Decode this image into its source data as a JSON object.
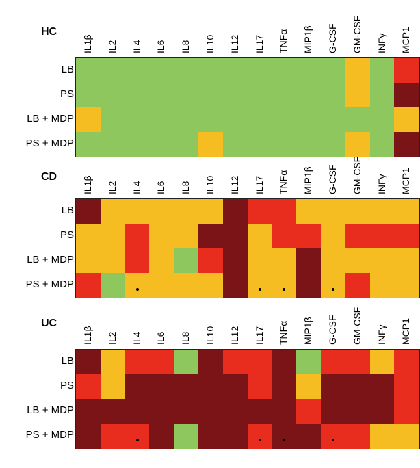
{
  "colors": {
    "green": "#8fc75f",
    "yellow": "#f5bd22",
    "red": "#e82c1e",
    "darkred": "#7b1416"
  },
  "chart_data": [
    {
      "type": "heatmap",
      "title": "HC",
      "columns": [
        "IL1β",
        "IL2",
        "IL4",
        "IL6",
        "IL8",
        "IL10",
        "IL12",
        "IL17",
        "TNFα",
        "MIP1β",
        "G-CSF",
        "GM-CSF",
        "INFγ",
        "MCP1"
      ],
      "rows": [
        "LB",
        "PS",
        "LB + MDP",
        "PS + MDP"
      ],
      "values": [
        [
          "green",
          "green",
          "green",
          "green",
          "green",
          "green",
          "green",
          "green",
          "green",
          "green",
          "green",
          "yellow",
          "green",
          "red"
        ],
        [
          "green",
          "green",
          "green",
          "green",
          "green",
          "green",
          "green",
          "green",
          "green",
          "green",
          "green",
          "yellow",
          "green",
          "darkred"
        ],
        [
          "yellow",
          "green",
          "green",
          "green",
          "green",
          "green",
          "green",
          "green",
          "green",
          "green",
          "green",
          "green",
          "green",
          "yellow"
        ],
        [
          "green",
          "green",
          "green",
          "green",
          "green",
          "yellow",
          "green",
          "green",
          "green",
          "green",
          "green",
          "yellow",
          "green",
          "darkred"
        ]
      ],
      "significant": []
    },
    {
      "type": "heatmap",
      "title": "CD",
      "columns": [
        "IL1β",
        "IL2",
        "IL4",
        "IL6",
        "IL8",
        "IL10",
        "IL12",
        "IL17",
        "TNFα",
        "MIP1β",
        "G-CSF",
        "GM-CSF",
        "INFγ",
        "MCP1"
      ],
      "rows": [
        "LB",
        "PS",
        "LB + MDP",
        "PS + MDP"
      ],
      "values": [
        [
          "darkred",
          "yellow",
          "yellow",
          "yellow",
          "yellow",
          "yellow",
          "darkred",
          "red",
          "red",
          "yellow",
          "yellow",
          "yellow",
          "yellow",
          "yellow"
        ],
        [
          "yellow",
          "yellow",
          "red",
          "yellow",
          "yellow",
          "darkred",
          "darkred",
          "yellow",
          "red",
          "red",
          "yellow",
          "red",
          "red",
          "red"
        ],
        [
          "yellow",
          "yellow",
          "red",
          "yellow",
          "green",
          "red",
          "darkred",
          "yellow",
          "yellow",
          "darkred",
          "yellow",
          "yellow",
          "yellow",
          "yellow"
        ],
        [
          "red",
          "green",
          "yellow",
          "yellow",
          "yellow",
          "yellow",
          "darkred",
          "yellow",
          "yellow",
          "darkred",
          "yellow",
          "red",
          "yellow",
          "yellow"
        ]
      ],
      "significant": [
        [
          3,
          2
        ],
        [
          3,
          7
        ],
        [
          3,
          8
        ],
        [
          3,
          10
        ]
      ]
    },
    {
      "type": "heatmap",
      "title": "UC",
      "columns": [
        "IL1β",
        "IL2",
        "IL4",
        "IL6",
        "IL8",
        "IL10",
        "IL12",
        "IL17",
        "TNFα",
        "MIP1β",
        "G-CSF",
        "GM-CSF",
        "INFγ",
        "MCP1"
      ],
      "rows": [
        "LB",
        "PS",
        "LB + MDP",
        "PS + MDP"
      ],
      "values": [
        [
          "darkred",
          "yellow",
          "red",
          "red",
          "green",
          "darkred",
          "red",
          "red",
          "darkred",
          "green",
          "red",
          "red",
          "yellow",
          "red"
        ],
        [
          "red",
          "yellow",
          "darkred",
          "darkred",
          "darkred",
          "darkred",
          "darkred",
          "red",
          "darkred",
          "yellow",
          "darkred",
          "darkred",
          "darkred",
          "red"
        ],
        [
          "darkred",
          "darkred",
          "darkred",
          "darkred",
          "darkred",
          "darkred",
          "darkred",
          "darkred",
          "darkred",
          "red",
          "darkred",
          "darkred",
          "darkred",
          "red"
        ],
        [
          "darkred",
          "red",
          "red",
          "darkred",
          "green",
          "darkred",
          "darkred",
          "red",
          "darkred",
          "darkred",
          "red",
          "red",
          "yellow",
          "yellow"
        ]
      ],
      "significant": [
        [
          3,
          2
        ],
        [
          3,
          7
        ],
        [
          3,
          8
        ],
        [
          3,
          10
        ]
      ]
    }
  ]
}
